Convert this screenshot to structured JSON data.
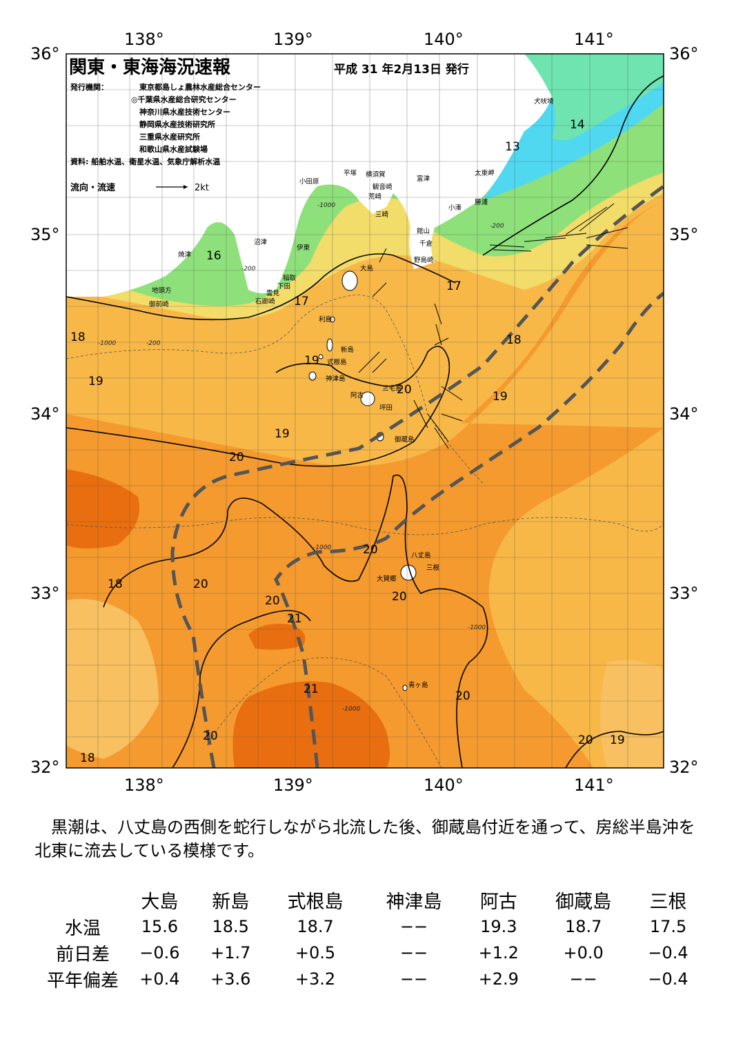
{
  "header": {
    "title": "関東・東海海況速報",
    "issue_date": "平成 31 年2月13日 発行",
    "publisher_label": "発行機関：",
    "publishers": [
      "東京都島しょ農林水産総合センター",
      "◎千葉県水産総合研究センター",
      "神奈川県水産技術センター",
      "静岡県水産技術研究所",
      "三重県水産研究所",
      "和歌山県水産試験場"
    ],
    "source": "資料: 船舶水温、衛星水温、気象庁解析水温",
    "legend_label": "流向・流速",
    "legend_scale": "2kt"
  },
  "axes": {
    "lon_labels": [
      "138°",
      "139°",
      "140°",
      "141°"
    ],
    "lat_labels": [
      "36°",
      "35°",
      "34°",
      "33°",
      "32°"
    ]
  },
  "isotherm_labels": [
    "16",
    "17",
    "17",
    "18",
    "19",
    "19",
    "19",
    "20",
    "20",
    "20",
    "20",
    "20",
    "20",
    "20",
    "21",
    "21",
    "20",
    "20",
    "19",
    "18",
    "18",
    "18",
    "13",
    "14",
    "19"
  ],
  "place_names": [
    "犬吠埼",
    "太東岬",
    "勝浦",
    "小湊",
    "富津",
    "横須賀",
    "観音崎",
    "平塚",
    "荒崎",
    "三崎",
    "小田原",
    "館山",
    "千倉",
    "野島崎",
    "大島",
    "沼津",
    "伊東",
    "焼津",
    "稲取",
    "下田",
    "雲見",
    "石廊崎",
    "地頭方",
    "御前崎",
    "利島",
    "新島",
    "式根島",
    "神津島",
    "三宅島",
    "阿古",
    "坪田",
    "御蔵島",
    "八丈島",
    "三根",
    "大賀郷",
    "青ヶ島"
  ],
  "depth_labels": [
    "-200",
    "-1000"
  ],
  "colors": {
    "warm_dark": "#e86e10",
    "warm_mid": "#f49a2e",
    "warm_light": "#f8b848",
    "yellow": "#f2dc6a",
    "green": "#8ee07a",
    "cyan": "#50d8f0",
    "land": "#ffffff",
    "kuroshio": "#555555"
  },
  "summary": "黒潮は、八丈島の西側を蛇行しながら北流した後、御蔵島付近を通って、房総半島沖を北東に流去している模様です。",
  "stats": {
    "columns": [
      "大島",
      "新島",
      "式根島",
      "神津島",
      "阿古",
      "御蔵島",
      "三根"
    ],
    "rows": [
      {
        "label": "水温",
        "values": [
          "15.6",
          "18.5",
          "18.7",
          "−−",
          "19.3",
          "18.7",
          "17.5"
        ]
      },
      {
        "label": "前日差",
        "values": [
          "−0.6",
          "+1.7",
          "+0.5",
          "−−",
          "+1.2",
          "+0.0",
          "−0.4"
        ]
      },
      {
        "label": "平年偏差",
        "values": [
          "+0.4",
          "+3.6",
          "+3.2",
          "−−",
          "+2.9",
          "−−",
          "−0.4"
        ]
      }
    ]
  }
}
